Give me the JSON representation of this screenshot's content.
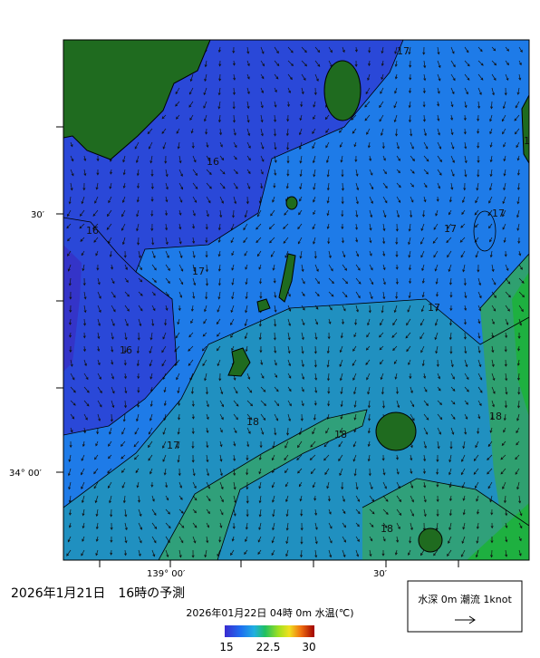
{
  "map": {
    "lat_labels": [
      "30′",
      "34° 00′"
    ],
    "lon_labels": [
      "139° 00′",
      "30′"
    ],
    "contour_labels": [
      "17",
      "16",
      "16",
      "17",
      "17",
      "17",
      "17",
      "16",
      "17",
      "18",
      "18",
      "18",
      "18",
      "16"
    ]
  },
  "footer": {
    "title": "2026年1月21日　16時の予測",
    "colorbar_title": "2026年01月22日 04時 0m 水温(℃)",
    "colorbar_ticks": [
      15,
      22.5,
      30
    ],
    "legend": "水深 0m 潮流 1knot"
  }
}
